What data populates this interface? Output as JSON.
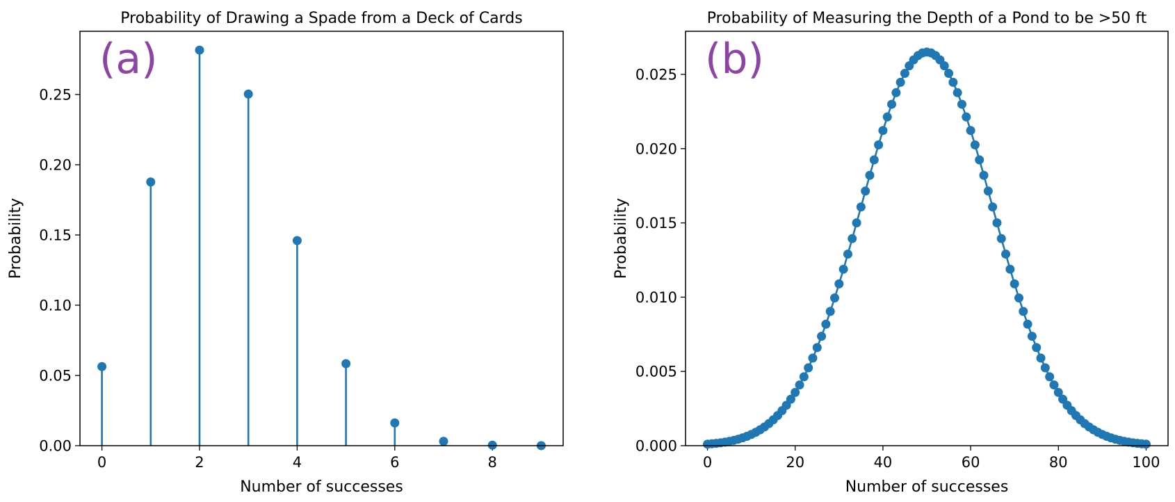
{
  "figure": {
    "panels": [
      "panel-a",
      "panel-b"
    ]
  },
  "chart_data": [
    {
      "type": "stem",
      "title": "Probability of Drawing a Spade from a Deck of Cards",
      "panel_label": "(a)",
      "xlabel": "Number of successes",
      "ylabel": "Probability",
      "xlim": [
        -0.45,
        9.45
      ],
      "ylim": [
        0,
        0.295
      ],
      "xticks": [
        0,
        2,
        4,
        6,
        8
      ],
      "yticks": [
        0.0,
        0.05,
        0.1,
        0.15,
        0.2,
        0.25
      ],
      "ytick_labels": [
        "0.00",
        "0.05",
        "0.10",
        "0.15",
        "0.20",
        "0.25"
      ],
      "x": [
        0,
        1,
        2,
        3,
        4,
        5,
        6,
        7,
        8,
        9
      ],
      "y": [
        0.0563,
        0.1877,
        0.2816,
        0.2503,
        0.146,
        0.0584,
        0.0162,
        0.0031,
        0.0004,
        3e-05
      ],
      "series_color": "#1f77b4",
      "label_color": "#8e44a4",
      "grid": false,
      "legend": "none"
    },
    {
      "type": "line",
      "title": "Probability of Measuring the Depth of a Pond to be >50 ft",
      "panel_label": "(b)",
      "xlabel": "Number of successes",
      "ylabel": "Probability",
      "xlim": [
        -5,
        105
      ],
      "ylim": [
        0,
        0.0279
      ],
      "xticks": [
        0,
        20,
        40,
        60,
        80,
        100
      ],
      "yticks": [
        0.0,
        0.005,
        0.01,
        0.015,
        0.02,
        0.025
      ],
      "ytick_labels": [
        "0.000",
        "0.005",
        "0.010",
        "0.015",
        "0.020",
        "0.025"
      ],
      "x_range": [
        0,
        100
      ],
      "curve": {
        "peak_x": 50,
        "peak_y": 0.0265,
        "sigma": 15
      },
      "markers": true,
      "series_color": "#1f77b4",
      "label_color": "#8e44a4",
      "grid": false,
      "legend": "none"
    }
  ]
}
